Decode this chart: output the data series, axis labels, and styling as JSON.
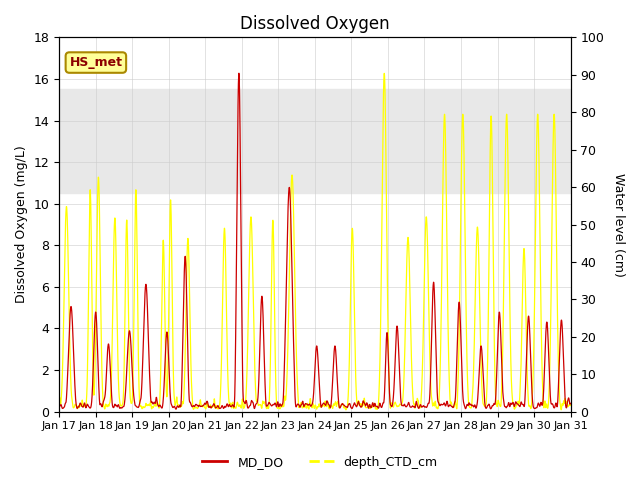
{
  "title": "Dissolved Oxygen",
  "ylabel_left": "Dissolved Oxygen (mg/L)",
  "ylabel_right": "Water level (cm)",
  "ylim_left": [
    0,
    18
  ],
  "ylim_right": [
    0,
    100
  ],
  "xlim": [
    0,
    14
  ],
  "xlabel_ticks": [
    "Jan 17",
    "Jan 18",
    "Jan 19",
    "Jan 20",
    "Jan 21",
    "Jan 22",
    "Jan 23",
    "Jan 24",
    "Jan 25",
    "Jan 26",
    "Jan 27",
    "Jan 28",
    "Jan 29",
    "Jan 30",
    "Jan 31"
  ],
  "shade_band": [
    10.5,
    15.5
  ],
  "shade_color": "#e8e8e8",
  "line_do_color": "#cc0000",
  "line_depth_color": "#ffff00",
  "legend_do": "MD_DO",
  "legend_depth": "depth_CTD_cm",
  "annotation_text": "HS_met",
  "background_color": "#ffffff",
  "title_fontsize": 12,
  "axis_fontsize": 9,
  "legend_fontsize": 9
}
